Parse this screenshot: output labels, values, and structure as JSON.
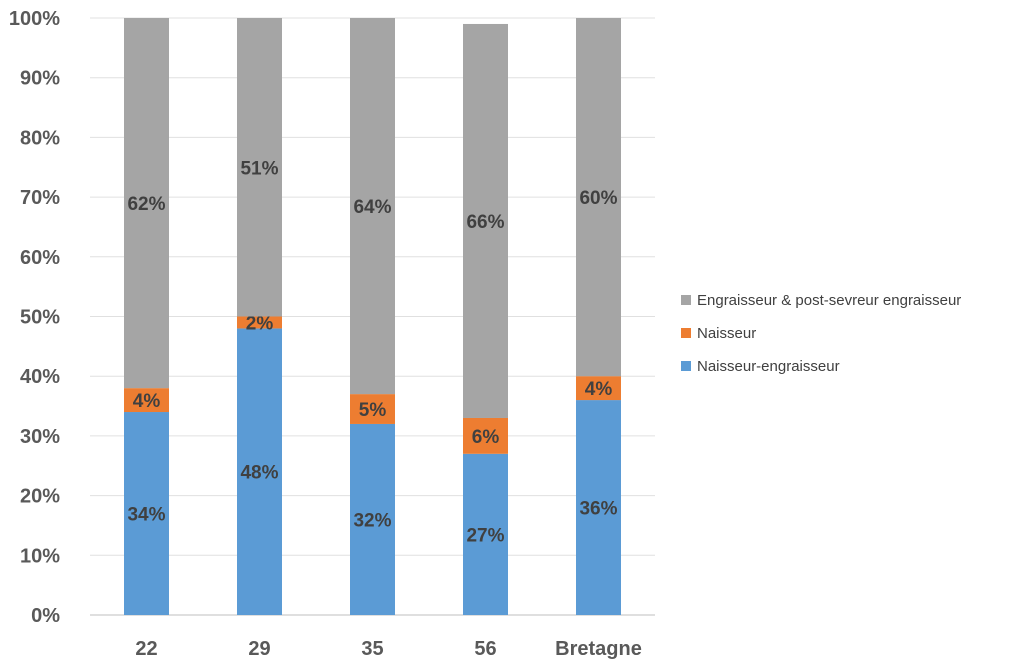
{
  "chart_data": {
    "type": "bar",
    "stacked": true,
    "title": "",
    "xlabel": "",
    "ylabel": "",
    "ylim": [
      0,
      100
    ],
    "grid": true,
    "legend_position": "right",
    "categories": [
      "22",
      "29",
      "35",
      "56",
      "Bretagne"
    ],
    "y_ticks": [
      "0%",
      "10%",
      "20%",
      "30%",
      "40%",
      "50%",
      "60%",
      "70%",
      "80%",
      "90%",
      "100%"
    ],
    "series": [
      {
        "name": "Naisseur-engraisseur",
        "color": "#5B9BD5",
        "values": [
          34,
          48,
          32,
          27,
          36
        ],
        "labels": [
          "34%",
          "48%",
          "32%",
          "27%",
          "36%"
        ]
      },
      {
        "name": "Naisseur",
        "color": "#ED7D31",
        "values": [
          4,
          2,
          5,
          6,
          4
        ],
        "labels": [
          "4%",
          "2%",
          "5%",
          "6%",
          "4%"
        ]
      },
      {
        "name": "Engraisseur & post-sevreur engraisseur",
        "color": "#A5A5A5",
        "values": [
          62,
          51,
          64,
          66,
          60
        ],
        "labels": [
          "62%",
          "51%",
          "64%",
          "66%",
          "60%"
        ]
      }
    ]
  }
}
